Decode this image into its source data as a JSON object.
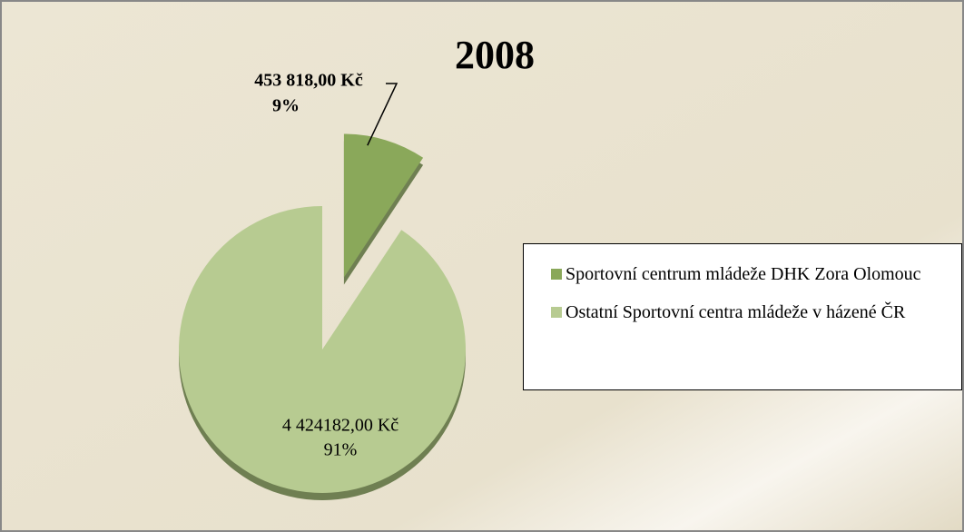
{
  "chart_data": {
    "type": "pie",
    "title": "2008",
    "categories": [
      "Sportovní centrum mládeže DHK Zora Olomouc",
      "Ostatní Sportovní centra mládeže v házené ČR"
    ],
    "values": [
      453818,
      4424182
    ],
    "value_labels": [
      "453 818,00 Kč",
      "4 424182,00 Kč"
    ],
    "percents": [
      9,
      91
    ],
    "percent_labels": [
      "9%",
      "91%"
    ],
    "colors": [
      "#8aa85a",
      "#b7cb91"
    ],
    "exploded": [
      true,
      false
    ],
    "legend": "right"
  }
}
